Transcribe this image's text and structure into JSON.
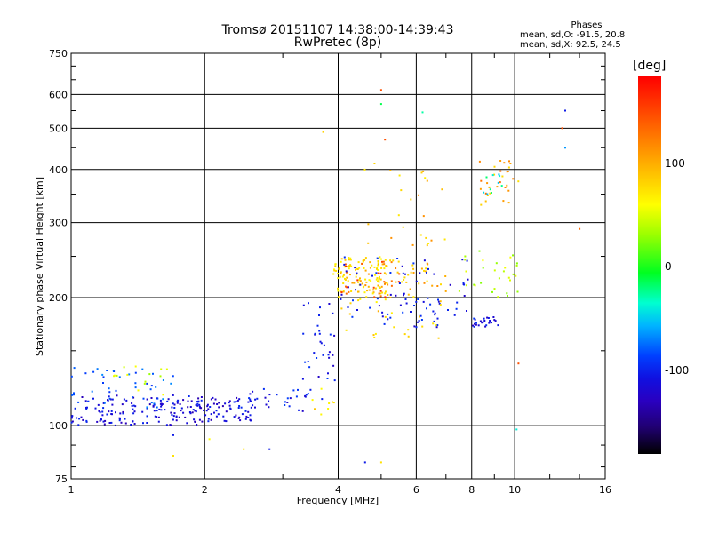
{
  "chart_data": {
    "type": "scatter",
    "title": "Tromsø 20151107 14:38:00-14:39:43",
    "subtitle": "RwPretec (8p)",
    "xlabel": "Frequency [MHz]",
    "ylabel": "Stationary phase Virtual Height [km]",
    "x_scale": "log",
    "y_scale": "log",
    "xlim": [
      1,
      16
    ],
    "ylim": [
      75,
      750
    ],
    "x_ticks": [
      "1",
      "2",
      "4",
      "6",
      "8",
      "10",
      "16"
    ],
    "y_ticks": [
      "75",
      "100",
      "200",
      "300",
      "400",
      "500",
      "600",
      "750"
    ],
    "grid": true,
    "phases_box": {
      "title": "Phases",
      "line1": "mean, sd,O: -91.5, 20.8",
      "line2": "mean, sd,X:  92.5, 24.5"
    },
    "colorbar": {
      "unit": "[deg]",
      "ticks": [
        "100",
        "0",
        "-100"
      ]
    },
    "clusters": [
      {
        "f": [
          1.0,
          1.95
        ],
        "h": [
          100,
          118
        ],
        "phase": -110,
        "n": 150
      },
      {
        "f": [
          1.0,
          1.7
        ],
        "h": [
          110,
          138
        ],
        "phase": -70,
        "n": 45
      },
      {
        "f": [
          1.2,
          1.65
        ],
        "h": [
          118,
          138
        ],
        "phase": 60,
        "n": 14
      },
      {
        "f": [
          1.9,
          2.6
        ],
        "h": [
          102,
          118
        ],
        "phase": -110,
        "n": 70
      },
      {
        "f": [
          2.5,
          3.5
        ],
        "h": [
          108,
          122
        ],
        "phase": -100,
        "n": 30
      },
      {
        "f": [
          3.3,
          3.95
        ],
        "h": [
          115,
          200
        ],
        "phase": -100,
        "n": 35
      },
      {
        "f": [
          3.5,
          3.95
        ],
        "h": [
          105,
          125
        ],
        "phase": 100,
        "n": 8
      },
      {
        "f": [
          3.9,
          5.2
        ],
        "h": [
          205,
          250
        ],
        "phase": 100,
        "n": 90
      },
      {
        "f": [
          4.0,
          7.0
        ],
        "h": [
          200,
          245
        ],
        "phase": 110,
        "n": 70
      },
      {
        "f": [
          4.0,
          5.5
        ],
        "h": [
          200,
          245
        ],
        "phase": 150,
        "n": 30
      },
      {
        "f": [
          4.0,
          8.0
        ],
        "h": [
          180,
          250
        ],
        "phase": -100,
        "n": 55
      },
      {
        "f": [
          5.0,
          7.0
        ],
        "h": [
          170,
          200
        ],
        "phase": -100,
        "n": 30
      },
      {
        "f": [
          8.0,
          9.2
        ],
        "h": [
          170,
          180
        ],
        "phase": -105,
        "n": 25
      },
      {
        "f": [
          7.5,
          10.5
        ],
        "h": [
          200,
          260
        ],
        "phase": 60,
        "n": 30
      },
      {
        "f": [
          8.3,
          10.2
        ],
        "h": [
          330,
          420
        ],
        "phase": 120,
        "n": 30
      },
      {
        "f": [
          8.5,
          9.5
        ],
        "h": [
          350,
          390
        ],
        "phase": -20,
        "n": 10
      },
      {
        "f": [
          4.0,
          7.0
        ],
        "h": [
          160,
          200
        ],
        "phase": 100,
        "n": 25
      },
      {
        "f": [
          4.5,
          7.0
        ],
        "h": [
          260,
          420
        ],
        "phase": 110,
        "n": 25
      }
    ],
    "points": [
      {
        "f": 5.0,
        "h": 615,
        "phase": 150
      },
      {
        "f": 5.0,
        "h": 570,
        "phase": 0
      },
      {
        "f": 6.2,
        "h": 545,
        "phase": -10
      },
      {
        "f": 13.0,
        "h": 550,
        "phase": -100
      },
      {
        "f": 12.8,
        "h": 500,
        "phase": 150
      },
      {
        "f": 13.0,
        "h": 450,
        "phase": -50
      },
      {
        "f": 14.0,
        "h": 290,
        "phase": 140
      },
      {
        "f": 3.7,
        "h": 490,
        "phase": 110
      },
      {
        "f": 5.1,
        "h": 470,
        "phase": 150
      },
      {
        "f": 1.7,
        "h": 95,
        "phase": -100
      },
      {
        "f": 1.7,
        "h": 85,
        "phase": 100
      },
      {
        "f": 2.05,
        "h": 93,
        "phase": 80
      },
      {
        "f": 2.45,
        "h": 88,
        "phase": 100
      },
      {
        "f": 2.8,
        "h": 88,
        "phase": -100
      },
      {
        "f": 4.6,
        "h": 82,
        "phase": -100
      },
      {
        "f": 5.0,
        "h": 82,
        "phase": 100
      },
      {
        "f": 10.1,
        "h": 98,
        "phase": -20
      },
      {
        "f": 10.2,
        "h": 140,
        "phase": 150
      }
    ]
  }
}
